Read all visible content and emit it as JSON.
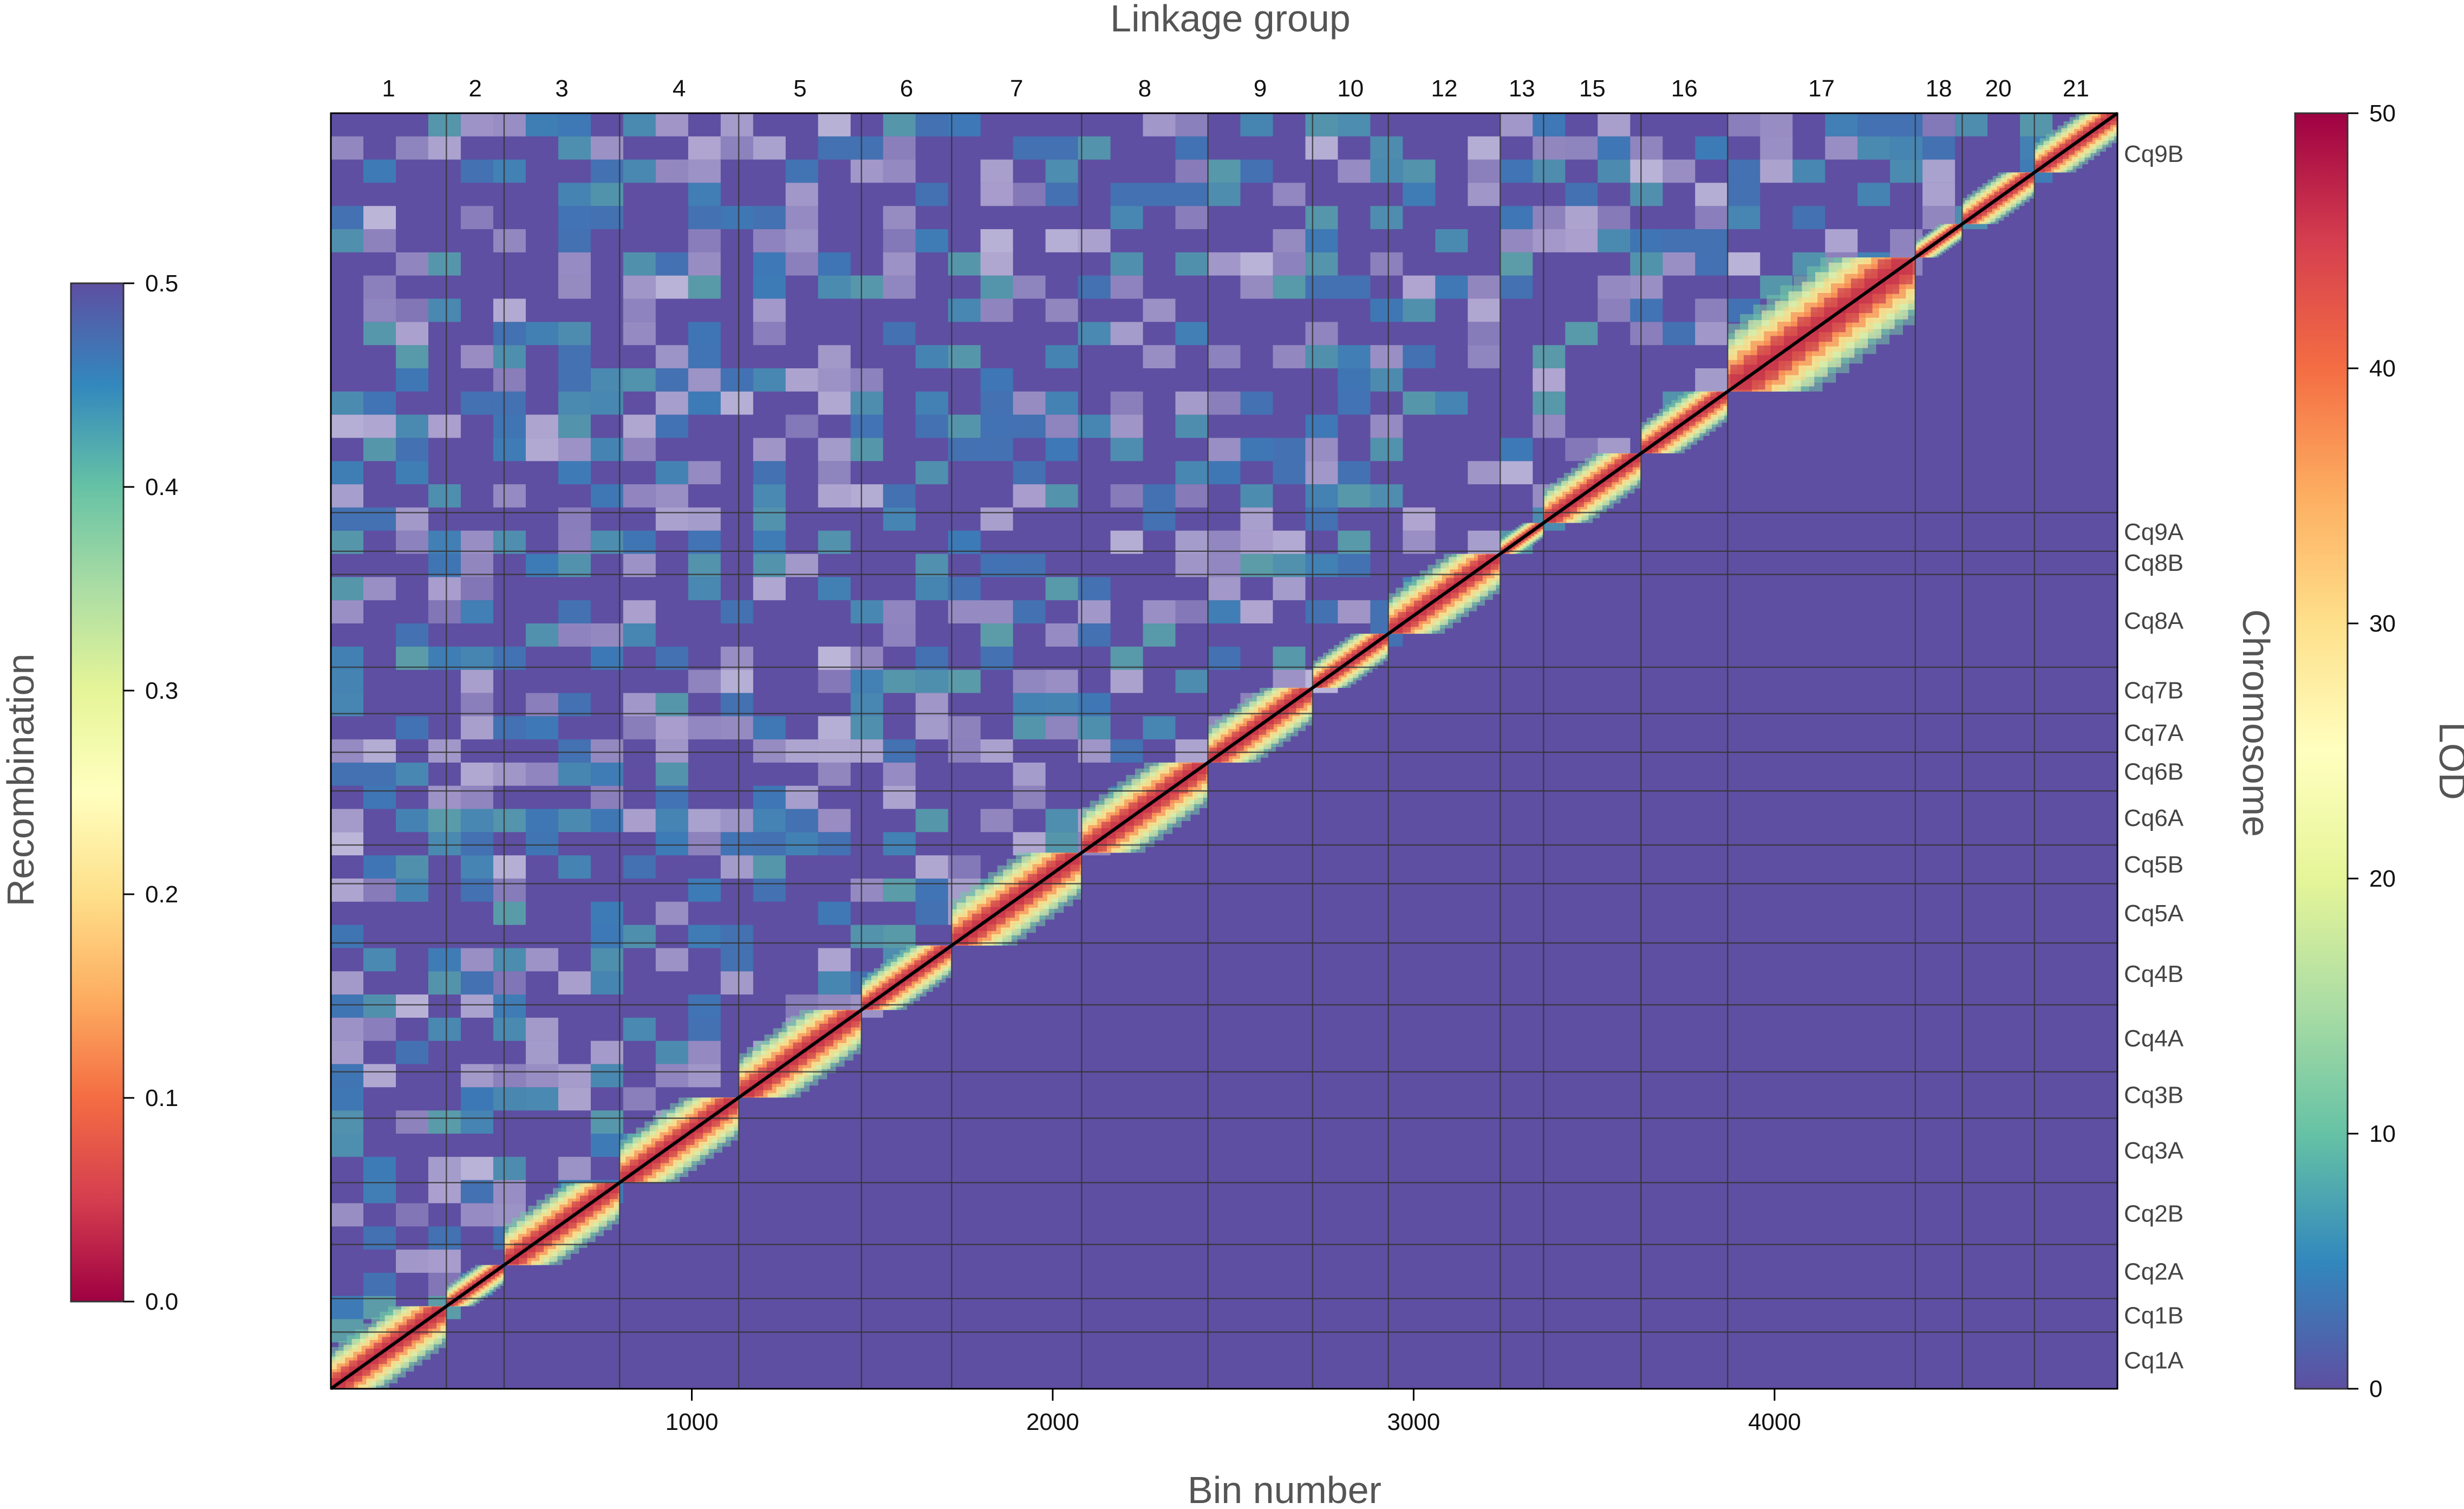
{
  "chart_data": {
    "type": "heatmap",
    "title": "",
    "top_label": "Linkage group",
    "xlabel": "Bin number",
    "right_label": "Chromosome",
    "x_range": [
      1,
      4950
    ],
    "x_ticks": [
      1000,
      2000,
      3000,
      4000
    ],
    "linkage_groups": [
      "1",
      "2",
      "3",
      "4",
      "5",
      "6",
      "7",
      "8",
      "9",
      "10",
      "12",
      "13",
      "15",
      "16",
      "17",
      "18",
      "20",
      "21"
    ],
    "linkage_group_ranges": [
      [
        0,
        320
      ],
      [
        320,
        480
      ],
      [
        480,
        800
      ],
      [
        800,
        1130
      ],
      [
        1130,
        1470
      ],
      [
        1470,
        1720
      ],
      [
        1720,
        2080
      ],
      [
        2080,
        2430
      ],
      [
        2430,
        2720
      ],
      [
        2720,
        2930
      ],
      [
        2930,
        3240
      ],
      [
        3240,
        3360
      ],
      [
        3360,
        3630
      ],
      [
        3630,
        3870
      ],
      [
        3870,
        4390
      ],
      [
        4390,
        4520
      ],
      [
        4520,
        4720
      ],
      [
        4720,
        4950
      ]
    ],
    "chromosomes": [
      "Cq1A",
      "Cq1B",
      "Cq2A",
      "Cq2B",
      "Cq3A",
      "Cq3B",
      "Cq4A",
      "Cq4B",
      "Cq5A",
      "Cq5B",
      "Cq6A",
      "Cq6B",
      "Cq7A",
      "Cq7B",
      "Cq8A",
      "Cq8B",
      "Cq9A",
      "Cq9B"
    ],
    "chromosome_ranges": [
      [
        0,
        220
      ],
      [
        220,
        350
      ],
      [
        350,
        560
      ],
      [
        560,
        800
      ],
      [
        800,
        1050
      ],
      [
        1050,
        1230
      ],
      [
        1230,
        1490
      ],
      [
        1490,
        1730
      ],
      [
        1730,
        1960
      ],
      [
        1960,
        2110
      ],
      [
        2110,
        2320
      ],
      [
        2320,
        2470
      ],
      [
        2470,
        2620
      ],
      [
        2620,
        2800
      ],
      [
        2800,
        3160
      ],
      [
        3160,
        3250
      ],
      [
        3250,
        3400
      ],
      [
        3400,
        4950
      ]
    ],
    "upper_triangle": "Recombination",
    "lower_triangle": "LOD",
    "left_colorbar": {
      "label": "Recombination",
      "range": [
        0.0,
        0.5
      ],
      "ticks": [
        "0.0",
        "0.1",
        "0.2",
        "0.3",
        "0.4",
        "0.5"
      ]
    },
    "right_colorbar": {
      "label": "LOD",
      "range": [
        0,
        50
      ],
      "ticks": [
        "0",
        "10",
        "20",
        "30",
        "40",
        "50"
      ]
    },
    "palette": [
      "#9e0142",
      "#d53e4f",
      "#f46d43",
      "#fdae61",
      "#fee08b",
      "#ffffbf",
      "#e6f598",
      "#abdda4",
      "#66c2a5",
      "#3288bd",
      "#5e4fa2"
    ],
    "background_color": "#5e4fa2",
    "diagonal_color": "#000000"
  }
}
